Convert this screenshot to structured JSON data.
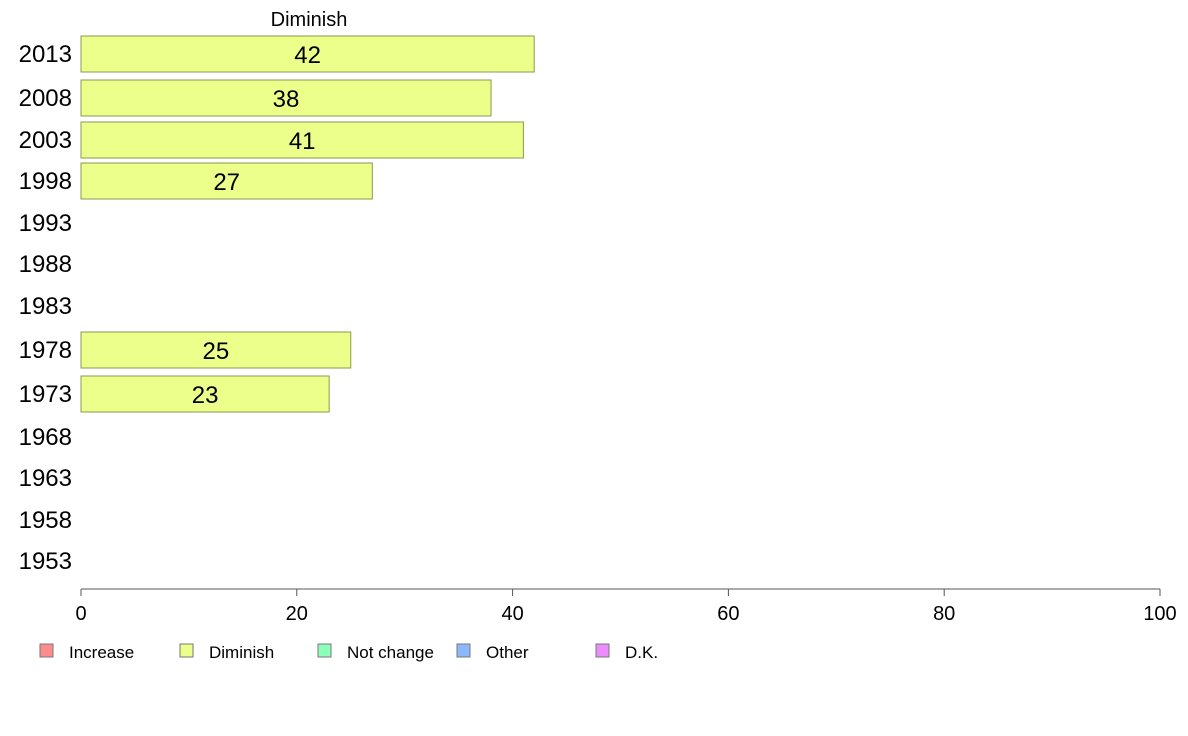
{
  "chart_data": {
    "type": "bar",
    "orientation": "horizontal",
    "title": "Diminish",
    "categories": [
      "2013",
      "2008",
      "2003",
      "1998",
      "1993",
      "1988",
      "1983",
      "1978",
      "1973",
      "1968",
      "1963",
      "1958",
      "1953"
    ],
    "series": [
      {
        "name": "Diminish",
        "color": "#EBFF8A",
        "values": [
          42,
          38,
          41,
          27,
          null,
          null,
          null,
          25,
          23,
          null,
          null,
          null,
          null
        ],
        "labels": [
          "42",
          "38",
          "41",
          "27",
          "",
          "",
          "",
          "25",
          "23",
          "",
          "",
          "",
          ""
        ]
      }
    ],
    "xlim": [
      0,
      100
    ],
    "xticks": [
      0,
      20,
      40,
      60,
      80,
      100
    ],
    "xtick_labels": [
      "0",
      "20",
      "40",
      "60",
      "80",
      "100"
    ],
    "grid": false,
    "legend": {
      "position": "bottom-left",
      "entries": [
        {
          "label": "Increase",
          "color": "#FF8C8C"
        },
        {
          "label": "Diminish",
          "color": "#EBFF8A"
        },
        {
          "label": "Not change",
          "color": "#8CFFB8"
        },
        {
          "label": "Other",
          "color": "#8CB8FF"
        },
        {
          "label": "D.K.",
          "color": "#EB8CFF"
        }
      ]
    },
    "colors": {
      "bar_stroke": "#8A9A50",
      "axis": "#555555"
    }
  }
}
